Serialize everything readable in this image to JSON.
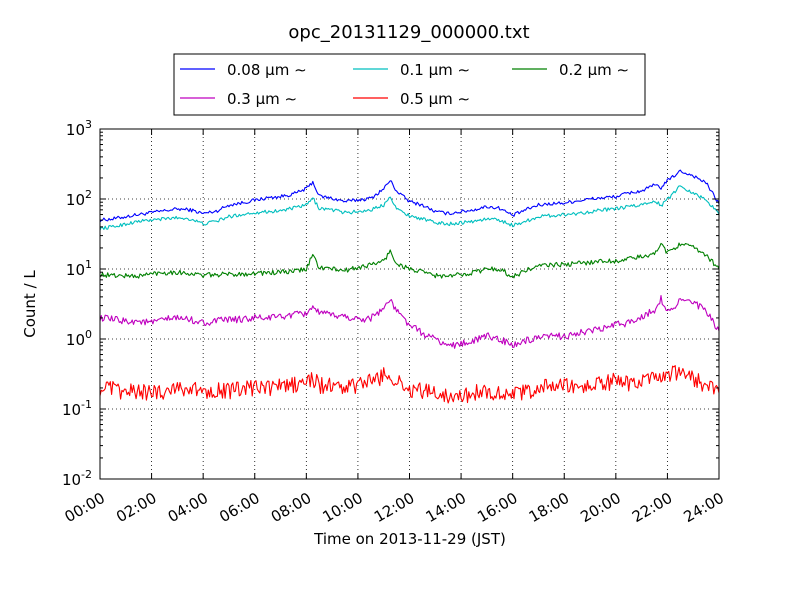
{
  "chart_data": {
    "type": "line",
    "title": "opc_20131129_000000.txt",
    "xlabel": "Time on 2013-11-29 (JST)",
    "ylabel": "Count / L",
    "xlim": [
      "00:00",
      "24:00"
    ],
    "xticks": [
      "00:00",
      "02:00",
      "04:00",
      "06:00",
      "08:00",
      "10:00",
      "12:00",
      "14:00",
      "16:00",
      "18:00",
      "20:00",
      "22:00",
      "24:00"
    ],
    "ylim": [
      0.01,
      1000
    ],
    "yscale": "log",
    "ytick_bases": [
      "10",
      "10",
      "10",
      "10",
      "10",
      "10"
    ],
    "ytick_exponents": [
      "-2",
      "-1",
      "0",
      "1",
      "2",
      "3"
    ],
    "grid": true,
    "legend_position": "top, above plot",
    "x_hours": [
      0,
      0.5,
      1,
      1.5,
      2,
      2.5,
      3,
      3.5,
      4,
      4.5,
      5,
      5.5,
      6,
      6.5,
      7,
      7.5,
      8,
      8.25,
      8.5,
      9,
      9.5,
      10,
      10.5,
      11,
      11.25,
      11.5,
      12,
      12.5,
      13,
      13.5,
      14,
      14.5,
      15,
      15.5,
      16,
      16.5,
      17,
      17.5,
      18,
      18.5,
      19,
      19.5,
      20,
      20.5,
      21,
      21.5,
      21.75,
      22,
      22.5,
      23,
      23.5,
      24
    ],
    "series": [
      {
        "name": "0.08 μm ∼",
        "color": "#0000ff",
        "values": [
          50,
          52,
          56,
          60,
          64,
          68,
          72,
          70,
          62,
          67,
          82,
          88,
          96,
          104,
          108,
          118,
          140,
          175,
          110,
          102,
          92,
          97,
          102,
          140,
          185,
          130,
          92,
          82,
          66,
          62,
          66,
          70,
          78,
          74,
          58,
          70,
          82,
          86,
          88,
          94,
          100,
          104,
          108,
          122,
          130,
          158,
          145,
          182,
          250,
          215,
          170,
          85
        ]
      },
      {
        "name": "0.1 μm ∼",
        "color": "#00bfbf",
        "values": [
          38,
          40,
          44,
          48,
          50,
          52,
          54,
          52,
          44,
          48,
          56,
          60,
          64,
          66,
          68,
          74,
          82,
          102,
          74,
          70,
          64,
          66,
          70,
          82,
          112,
          72,
          58,
          52,
          46,
          44,
          46,
          48,
          52,
          50,
          42,
          48,
          56,
          58,
          60,
          62,
          66,
          70,
          72,
          78,
          82,
          96,
          80,
          98,
          155,
          122,
          98,
          60
        ]
      },
      {
        "name": "0.2 μm ∼",
        "color": "#008000",
        "values": [
          8.3,
          8.1,
          8.0,
          7.9,
          8.6,
          8.9,
          9.0,
          8.6,
          8.1,
          8.3,
          8.4,
          8.5,
          8.7,
          8.8,
          9.0,
          9.2,
          10,
          16,
          10.5,
          10,
          9.5,
          10.5,
          11.5,
          13,
          18,
          12,
          10,
          9.0,
          8.1,
          7.8,
          8.4,
          9.0,
          10,
          10,
          7.7,
          9.5,
          11,
          11.5,
          11.5,
          12,
          12.5,
          13,
          13,
          14,
          15,
          16,
          24,
          17,
          23,
          20,
          16,
          10
        ]
      },
      {
        "name": "0.3 μm ∼",
        "color": "#bf00bf",
        "values": [
          2.0,
          1.9,
          1.8,
          1.8,
          1.7,
          1.9,
          2.0,
          1.9,
          1.7,
          1.8,
          1.9,
          1.9,
          2.0,
          2.0,
          2.1,
          2.2,
          2.3,
          3.0,
          2.3,
          2.2,
          2.1,
          1.9,
          2.0,
          2.8,
          3.6,
          2.5,
          1.6,
          1.2,
          1.0,
          0.8,
          0.85,
          0.95,
          1.1,
          1.0,
          0.8,
          0.95,
          1.0,
          1.1,
          1.1,
          1.2,
          1.3,
          1.4,
          1.6,
          1.7,
          2.1,
          2.6,
          3.8,
          2.4,
          3.6,
          3.3,
          2.5,
          1.3
        ]
      },
      {
        "name": "0.5 μm ∼",
        "color": "#ff0000",
        "values": [
          0.2,
          0.19,
          0.17,
          0.18,
          0.17,
          0.18,
          0.21,
          0.19,
          0.18,
          0.19,
          0.18,
          0.19,
          0.2,
          0.2,
          0.21,
          0.22,
          0.24,
          0.27,
          0.22,
          0.21,
          0.2,
          0.22,
          0.25,
          0.3,
          0.32,
          0.24,
          0.19,
          0.18,
          0.17,
          0.16,
          0.15,
          0.17,
          0.18,
          0.17,
          0.16,
          0.17,
          0.2,
          0.22,
          0.21,
          0.2,
          0.22,
          0.23,
          0.25,
          0.23,
          0.25,
          0.26,
          0.24,
          0.3,
          0.33,
          0.27,
          0.22,
          0.17
        ]
      }
    ]
  }
}
